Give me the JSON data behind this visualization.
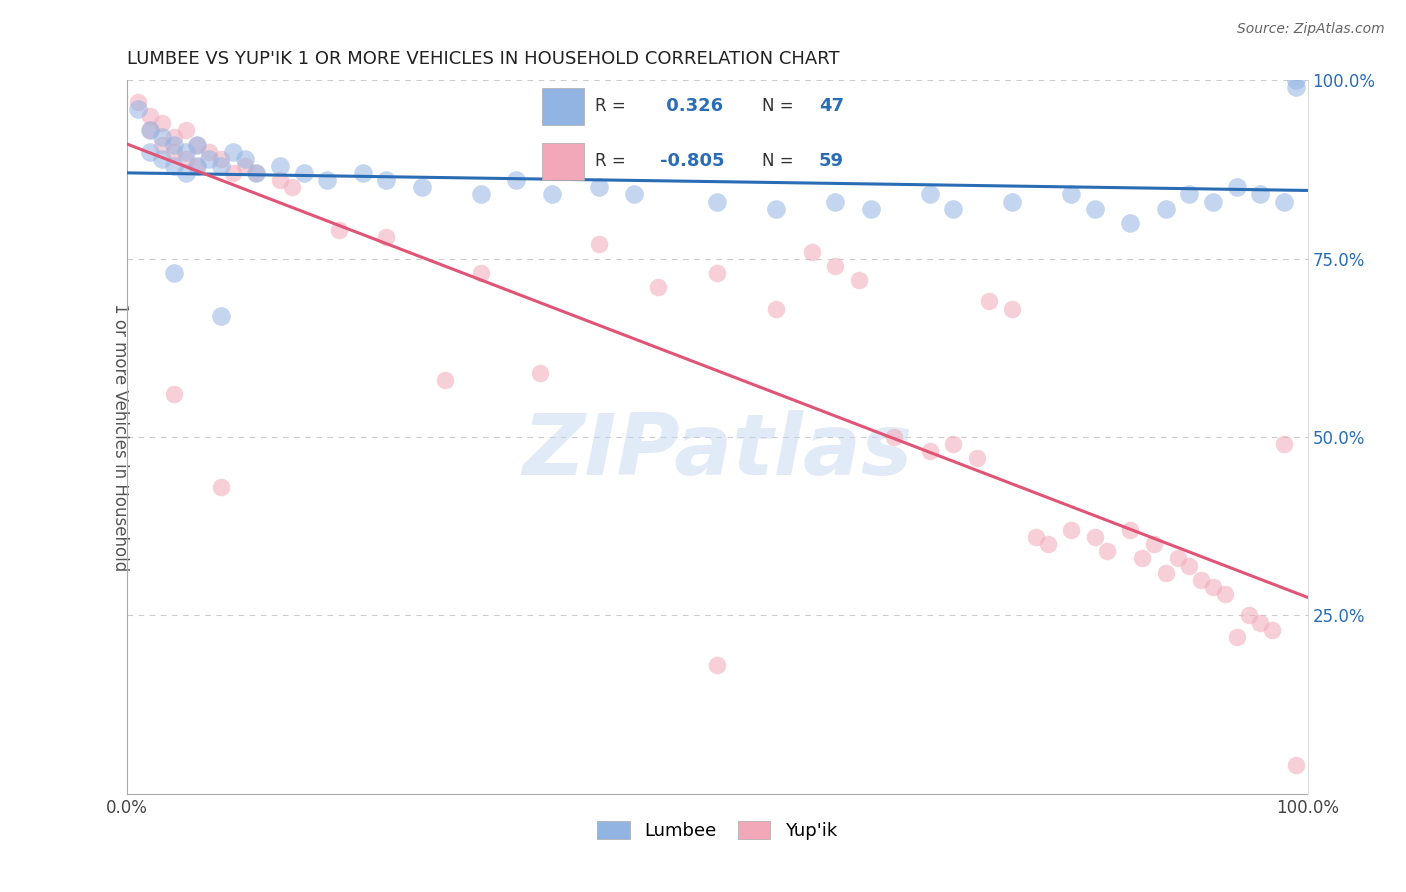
{
  "title": "LUMBEE VS YUP'IK 1 OR MORE VEHICLES IN HOUSEHOLD CORRELATION CHART",
  "source_text": "Source: ZipAtlas.com",
  "ylabel": "1 or more Vehicles in Household",
  "xlim": [
    0.0,
    1.0
  ],
  "ylim": [
    0.0,
    1.0
  ],
  "legend_r_lumbee": " 0.326",
  "legend_n_lumbee": "47",
  "legend_r_yupik": "-0.805",
  "legend_n_yupik": "59",
  "lumbee_color": "#92B4E3",
  "yupik_color": "#F2A8B8",
  "lumbee_line_color": "#2A6DB5",
  "yupik_line_color": "#E05575",
  "grid_color": "#CCCCCC",
  "background_color": "#FFFFFF",
  "watermark_color": "#C5D8F0",
  "lumbee_scatter": [
    [
      0.01,
      0.96
    ],
    [
      0.02,
      0.93
    ],
    [
      0.02,
      0.9
    ],
    [
      0.03,
      0.92
    ],
    [
      0.03,
      0.89
    ],
    [
      0.04,
      0.91
    ],
    [
      0.04,
      0.88
    ],
    [
      0.05,
      0.9
    ],
    [
      0.05,
      0.87
    ],
    [
      0.06,
      0.91
    ],
    [
      0.06,
      0.88
    ],
    [
      0.07,
      0.89
    ],
    [
      0.08,
      0.88
    ],
    [
      0.09,
      0.9
    ],
    [
      0.1,
      0.89
    ],
    [
      0.11,
      0.87
    ],
    [
      0.13,
      0.88
    ],
    [
      0.15,
      0.87
    ],
    [
      0.17,
      0.86
    ],
    [
      0.2,
      0.87
    ],
    [
      0.22,
      0.86
    ],
    [
      0.25,
      0.85
    ],
    [
      0.04,
      0.73
    ],
    [
      0.08,
      0.67
    ],
    [
      0.3,
      0.84
    ],
    [
      0.33,
      0.86
    ],
    [
      0.36,
      0.84
    ],
    [
      0.4,
      0.85
    ],
    [
      0.43,
      0.84
    ],
    [
      0.5,
      0.83
    ],
    [
      0.55,
      0.82
    ],
    [
      0.6,
      0.83
    ],
    [
      0.63,
      0.82
    ],
    [
      0.68,
      0.84
    ],
    [
      0.7,
      0.82
    ],
    [
      0.75,
      0.83
    ],
    [
      0.8,
      0.84
    ],
    [
      0.82,
      0.82
    ],
    [
      0.85,
      0.8
    ],
    [
      0.88,
      0.82
    ],
    [
      0.9,
      0.84
    ],
    [
      0.92,
      0.83
    ],
    [
      0.94,
      0.85
    ],
    [
      0.96,
      0.84
    ],
    [
      0.98,
      0.83
    ],
    [
      0.99,
      1.0
    ],
    [
      0.99,
      0.99
    ]
  ],
  "yupik_scatter": [
    [
      0.01,
      0.97
    ],
    [
      0.02,
      0.95
    ],
    [
      0.02,
      0.93
    ],
    [
      0.03,
      0.94
    ],
    [
      0.03,
      0.91
    ],
    [
      0.04,
      0.92
    ],
    [
      0.04,
      0.9
    ],
    [
      0.05,
      0.93
    ],
    [
      0.05,
      0.89
    ],
    [
      0.06,
      0.91
    ],
    [
      0.06,
      0.88
    ],
    [
      0.07,
      0.9
    ],
    [
      0.08,
      0.89
    ],
    [
      0.09,
      0.87
    ],
    [
      0.1,
      0.88
    ],
    [
      0.11,
      0.87
    ],
    [
      0.13,
      0.86
    ],
    [
      0.14,
      0.85
    ],
    [
      0.04,
      0.56
    ],
    [
      0.08,
      0.43
    ],
    [
      0.18,
      0.79
    ],
    [
      0.22,
      0.78
    ],
    [
      0.27,
      0.58
    ],
    [
      0.3,
      0.73
    ],
    [
      0.35,
      0.59
    ],
    [
      0.4,
      0.77
    ],
    [
      0.45,
      0.71
    ],
    [
      0.5,
      0.73
    ],
    [
      0.55,
      0.68
    ],
    [
      0.58,
      0.76
    ],
    [
      0.6,
      0.74
    ],
    [
      0.62,
      0.72
    ],
    [
      0.65,
      0.5
    ],
    [
      0.68,
      0.48
    ],
    [
      0.7,
      0.49
    ],
    [
      0.72,
      0.47
    ],
    [
      0.73,
      0.69
    ],
    [
      0.75,
      0.68
    ],
    [
      0.77,
      0.36
    ],
    [
      0.78,
      0.35
    ],
    [
      0.8,
      0.37
    ],
    [
      0.82,
      0.36
    ],
    [
      0.83,
      0.34
    ],
    [
      0.85,
      0.37
    ],
    [
      0.86,
      0.33
    ],
    [
      0.87,
      0.35
    ],
    [
      0.88,
      0.31
    ],
    [
      0.89,
      0.33
    ],
    [
      0.9,
      0.32
    ],
    [
      0.91,
      0.3
    ],
    [
      0.92,
      0.29
    ],
    [
      0.93,
      0.28
    ],
    [
      0.94,
      0.22
    ],
    [
      0.95,
      0.25
    ],
    [
      0.96,
      0.24
    ],
    [
      0.97,
      0.23
    ],
    [
      0.98,
      0.49
    ],
    [
      0.99,
      0.04
    ],
    [
      0.5,
      0.18
    ]
  ],
  "lumbee_size": 180,
  "yupik_size": 160,
  "lumbee_alpha": 0.55,
  "yupik_alpha": 0.55
}
